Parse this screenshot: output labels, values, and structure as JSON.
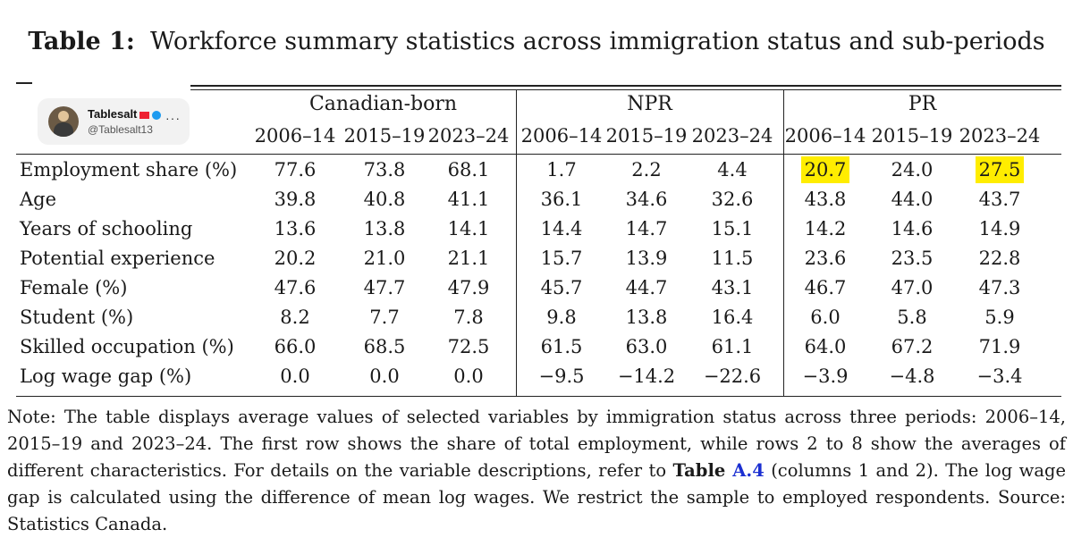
{
  "title": {
    "label": "Table 1:",
    "text": "Workforce summary statistics across immigration status and sub-periods"
  },
  "badge": {
    "name": "Tablesalt",
    "handle": "@Tablesalt13",
    "more": "···",
    "flag_color": "#ee2233",
    "verified_color": "#1d9bf0"
  },
  "groups": [
    "Canadian-born",
    "NPR",
    "PR"
  ],
  "periods": [
    "2006–14",
    "2015–19",
    "2023–24",
    "2006–14",
    "2015–19",
    "2023–24",
    "2006–14",
    "2015–19",
    "2023–24"
  ],
  "rows": [
    {
      "label": "Employment share (%)",
      "values": [
        "77.6",
        "73.8",
        "68.1",
        "1.7",
        "2.2",
        "4.4",
        "20.7",
        "24.0",
        "27.5"
      ]
    },
    {
      "label": "Age",
      "values": [
        "39.8",
        "40.8",
        "41.1",
        "36.1",
        "34.6",
        "32.6",
        "43.8",
        "44.0",
        "43.7"
      ]
    },
    {
      "label": "Years of schooling",
      "values": [
        "13.6",
        "13.8",
        "14.1",
        "14.4",
        "14.7",
        "15.1",
        "14.2",
        "14.6",
        "14.9"
      ]
    },
    {
      "label": "Potential experience",
      "values": [
        "20.2",
        "21.0",
        "21.1",
        "15.7",
        "13.9",
        "11.5",
        "23.6",
        "23.5",
        "22.8"
      ]
    },
    {
      "label": "Female (%)",
      "values": [
        "47.6",
        "47.7",
        "47.9",
        "45.7",
        "44.7",
        "43.1",
        "46.7",
        "47.0",
        "47.3"
      ]
    },
    {
      "label": "Student (%)",
      "values": [
        "8.2",
        "7.7",
        "7.8",
        "9.8",
        "13.8",
        "16.4",
        "6.0",
        "5.8",
        "5.9"
      ]
    },
    {
      "label": "Skilled occupation (%)",
      "values": [
        "66.0",
        "68.5",
        "72.5",
        "61.5",
        "63.0",
        "61.1",
        "64.0",
        "67.2",
        "71.9"
      ]
    },
    {
      "label": "Log wage gap (%)",
      "values": [
        "0.0",
        "0.0",
        "0.0",
        "−9.5",
        "−14.2",
        "−22.6",
        "−3.9",
        "−4.8",
        "−3.4"
      ]
    }
  ],
  "highlight_color": "#ffed00",
  "highlighted_cells": [
    [
      0,
      6
    ],
    [
      0,
      8
    ]
  ],
  "note": {
    "part1": "Note: The table displays average values of selected variables by immigration status across three periods: 2006–14, 2015–19 and 2023–24. The first row shows the share of total employment, while rows 2 to 8 show the averages of different characteristics. For details on the variable descriptions, refer to ",
    "ref_word": "Table",
    "ref_id": "A.4",
    "part2": " (columns 1 and 2). The log wage gap is calculated using the difference of mean log wages. We restrict the sample to employed respondents. Source: Statistics Canada."
  }
}
